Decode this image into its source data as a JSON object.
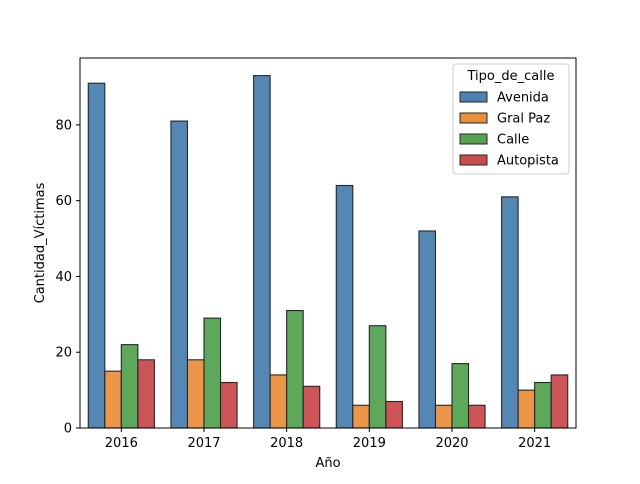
{
  "chart_data": {
    "type": "bar",
    "title": "",
    "xlabel": "Año",
    "ylabel": "Cantidad_Víctimas",
    "categories": [
      "2016",
      "2017",
      "2018",
      "2019",
      "2020",
      "2021"
    ],
    "series": [
      {
        "name": "Avenida",
        "color": "#4c81b1",
        "values": [
          91,
          81,
          93,
          64,
          52,
          61
        ]
      },
      {
        "name": "Gral Paz",
        "color": "#e98f3e",
        "values": [
          15,
          18,
          14,
          6,
          6,
          10
        ]
      },
      {
        "name": "Calle",
        "color": "#55a352",
        "values": [
          22,
          29,
          31,
          27,
          17,
          12
        ]
      },
      {
        "name": "Autopista",
        "color": "#ca4b4e",
        "values": [
          18,
          12,
          11,
          7,
          6,
          14
        ]
      }
    ],
    "ylim": [
      0,
      97.65
    ],
    "yticks": [
      0,
      20,
      40,
      60,
      80
    ],
    "legend": {
      "title": "Tipo_de_calle",
      "placement": "top-right"
    },
    "grid": false
  }
}
